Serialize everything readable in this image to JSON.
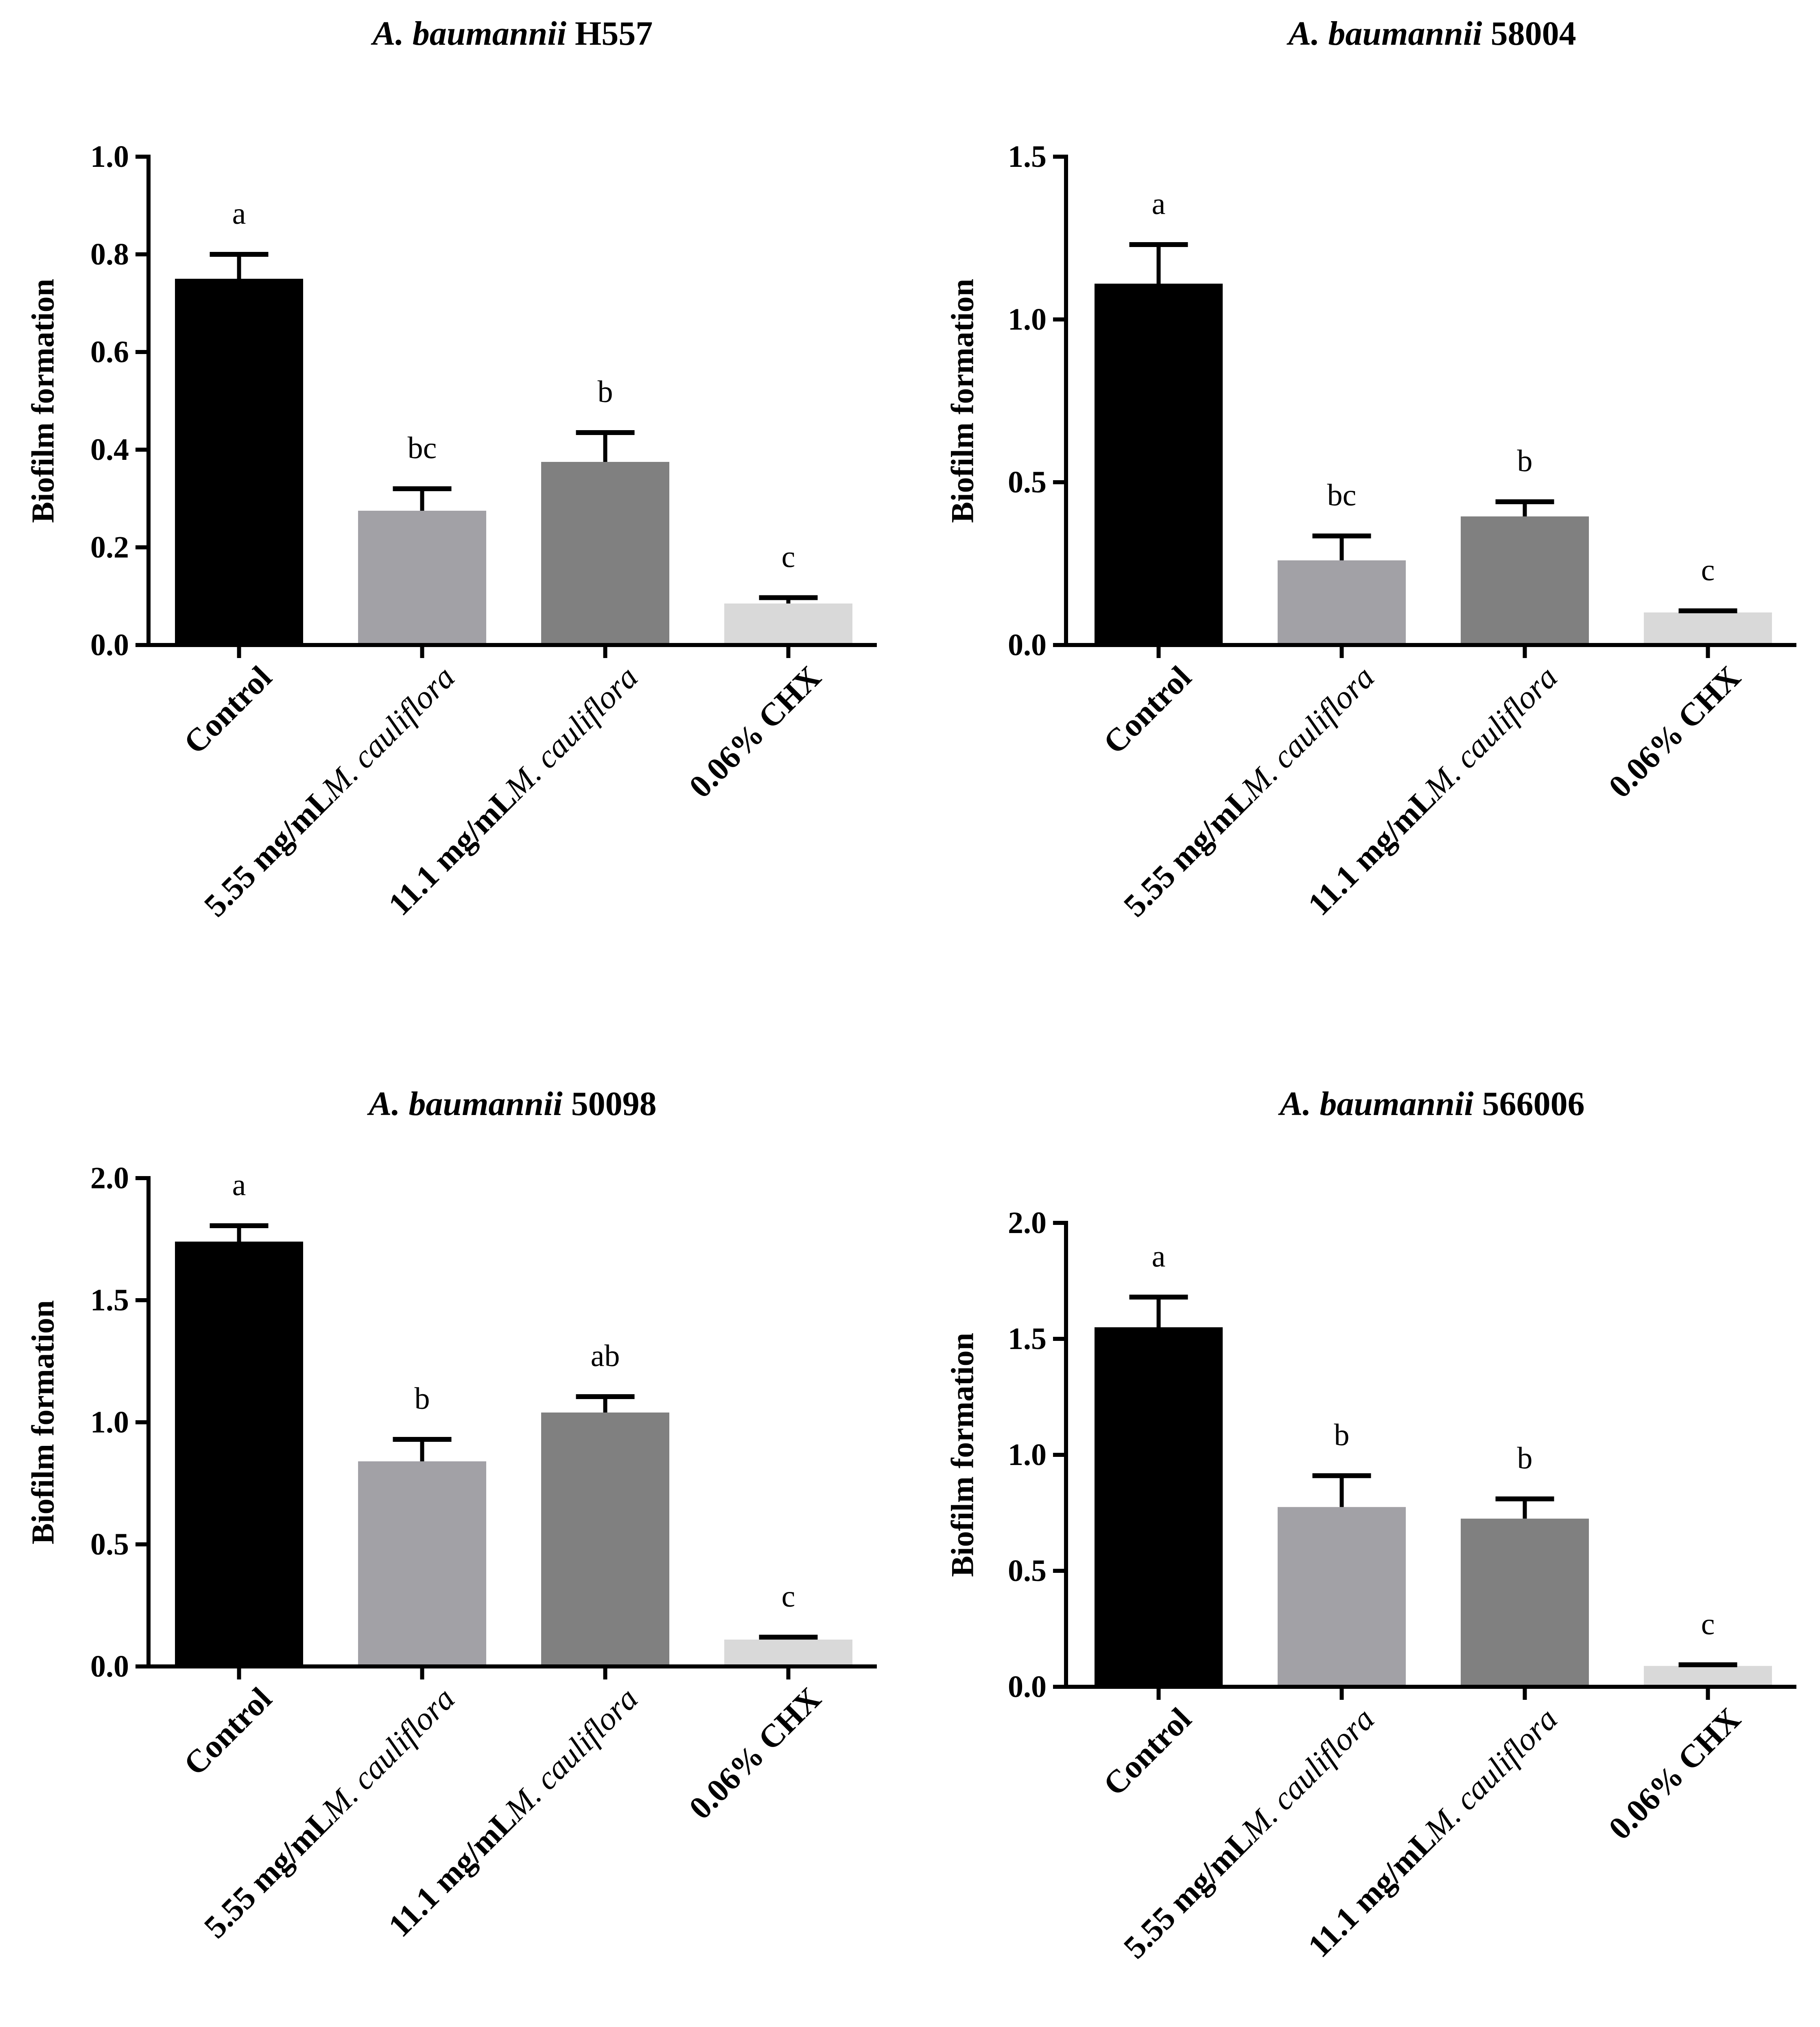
{
  "figure": {
    "colors": {
      "control": "#000000",
      "low_dose": "#a2a1a6",
      "high_dose": "#808080",
      "chx": "#d9d9d9",
      "axis": "#000000"
    }
  },
  "chart_data": [
    {
      "type": "bar",
      "title_species": "A. baumannii",
      "title_strain": "H557",
      "ylabel": "Biofilm formation",
      "ylim": [
        0,
        1.0
      ],
      "yticks": [
        0.0,
        0.2,
        0.4,
        0.6,
        0.8,
        1.0
      ],
      "ytick_labels": [
        "0.0",
        "0.2",
        "0.4",
        "0.6",
        "0.8",
        "1.0"
      ],
      "categories": [
        {
          "main": "Control",
          "ital": ""
        },
        {
          "main": "5.55 mg/mL",
          "ital": "M. cauliflora"
        },
        {
          "main": "11.1 mg/mL",
          "ital": "M. cauliflora"
        },
        {
          "main": "0.06% CHX",
          "ital": ""
        }
      ],
      "values": [
        0.75,
        0.275,
        0.375,
        0.085
      ],
      "errors": [
        0.05,
        0.045,
        0.06,
        0.012
      ],
      "significance": [
        "a",
        "bc",
        "b",
        "c"
      ]
    },
    {
      "type": "bar",
      "title_species": "A. baumannii",
      "title_strain": "58004",
      "ylabel": "Biofilm formation",
      "ylim": [
        0,
        1.5
      ],
      "yticks": [
        0.0,
        0.5,
        1.0,
        1.5
      ],
      "ytick_labels": [
        "0.0",
        "0.5",
        "1.0",
        "1.5"
      ],
      "categories": [
        {
          "main": "Control",
          "ital": ""
        },
        {
          "main": "5.55 mg/mL",
          "ital": "M. cauliflora"
        },
        {
          "main": "11.1 mg/mL",
          "ital": "M. cauliflora"
        },
        {
          "main": "0.06% CHX",
          "ital": ""
        }
      ],
      "values": [
        1.11,
        0.26,
        0.395,
        0.1
      ],
      "errors": [
        0.12,
        0.075,
        0.045,
        0.005
      ],
      "significance": [
        "a",
        "bc",
        "b",
        "c"
      ]
    },
    {
      "type": "bar",
      "title_species": "A. baumannii",
      "title_strain": "50098",
      "ylabel": "Biofilm formation",
      "ylim": [
        0,
        2.0
      ],
      "yticks": [
        0.0,
        0.5,
        1.0,
        1.5,
        2.0
      ],
      "ytick_labels": [
        "0.0",
        "0.5",
        "1.0",
        "1.5",
        "2.0"
      ],
      "categories": [
        {
          "main": "Control",
          "ital": ""
        },
        {
          "main": "5.55 mg/mL",
          "ital": "M. cauliflora"
        },
        {
          "main": "11.1 mg/mL",
          "ital": "M. cauliflora"
        },
        {
          "main": "0.06% CHX",
          "ital": ""
        }
      ],
      "values": [
        1.74,
        0.84,
        1.04,
        0.11
      ],
      "errors": [
        0.065,
        0.09,
        0.065,
        0.01
      ],
      "significance": [
        "a",
        "b",
        "ab",
        "c"
      ]
    },
    {
      "type": "bar",
      "title_species": "A. baumannii",
      "title_strain": "566006",
      "ylabel": "Biofilm formation",
      "ylim": [
        0,
        2.0
      ],
      "yticks": [
        0.0,
        0.5,
        1.0,
        1.5,
        2.0
      ],
      "ytick_labels": [
        "0.0",
        "0.5",
        "1.0",
        "1.5",
        "2.0"
      ],
      "categories": [
        {
          "main": "Control",
          "ital": ""
        },
        {
          "main": "5.55 mg/mL",
          "ital": "M. cauliflora"
        },
        {
          "main": "11.1 mg/mL",
          "ital": "M. cauliflora"
        },
        {
          "main": "0.06% CHX",
          "ital": ""
        }
      ],
      "values": [
        1.55,
        0.775,
        0.725,
        0.09
      ],
      "errors": [
        0.13,
        0.135,
        0.085,
        0.005
      ],
      "significance": [
        "a",
        "b",
        "b",
        "c"
      ]
    }
  ]
}
